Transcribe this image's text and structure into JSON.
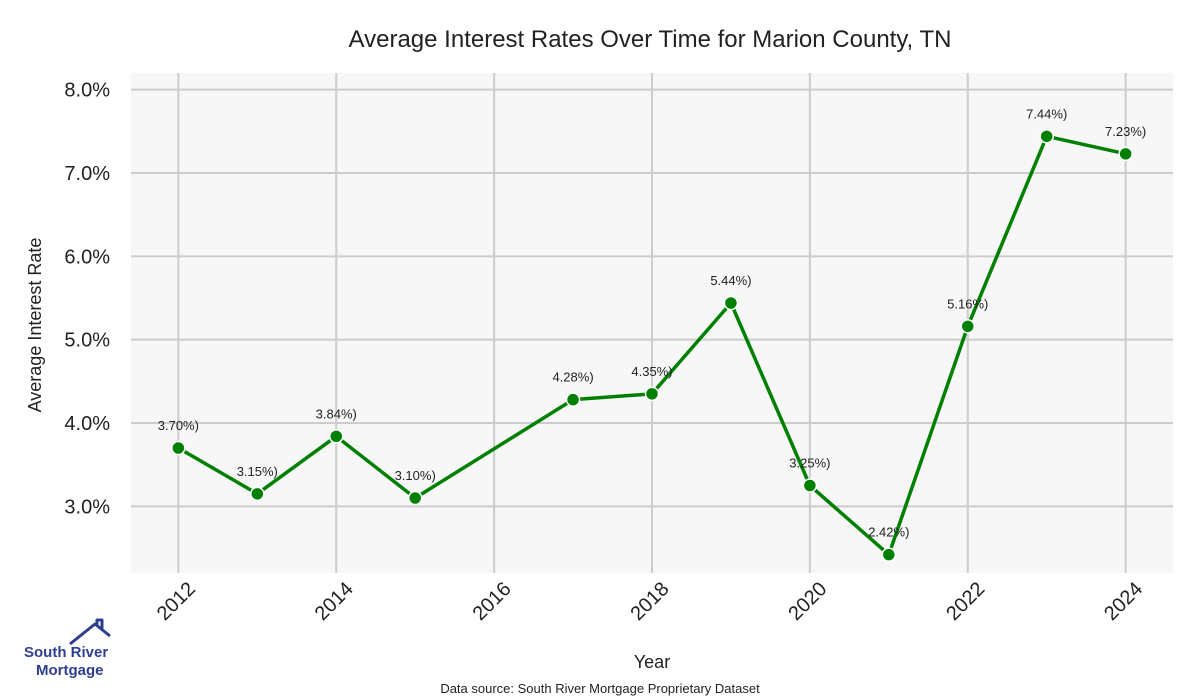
{
  "chart_data": {
    "type": "line",
    "title": "Average Interest Rates Over Time for Marion County, TN",
    "xlabel": "Year",
    "ylabel": "Average Interest Rate",
    "xlim": [
      2011.4,
      2024.6
    ],
    "ylim": [
      2.2,
      8.2
    ],
    "x_ticks": [
      "2012",
      "2014",
      "2016",
      "2018",
      "2020",
      "2022",
      "2024"
    ],
    "x_tick_values": [
      2012,
      2014,
      2016,
      2018,
      2020,
      2022,
      2024
    ],
    "y_ticks": [
      "3.0%",
      "4.0%",
      "5.0%",
      "6.0%",
      "7.0%",
      "8.0%"
    ],
    "y_tick_values": [
      3.0,
      4.0,
      5.0,
      6.0,
      7.0,
      8.0
    ],
    "grid": true,
    "series": [
      {
        "color": "#008000",
        "x": [
          2012,
          2013,
          2014,
          2015,
          2017,
          2018,
          2019,
          2020,
          2021,
          2022,
          2023,
          2024
        ],
        "values": [
          3.7,
          3.15,
          3.84,
          3.1,
          4.28,
          4.35,
          5.44,
          3.25,
          2.42,
          5.16,
          7.44,
          7.23
        ],
        "labels": [
          "3.70%)",
          "3.15%)",
          "3.84%)",
          "3.10%)",
          "4.28%)",
          "4.35%)",
          "5.44%)",
          "3.25%)",
          "2.42%)",
          "5.16%)",
          "7.44%)",
          "7.23%)"
        ]
      }
    ]
  },
  "footer": {
    "source": "Data source: South River Mortgage Proprietary Dataset"
  },
  "logo": {
    "line1": "South River",
    "line2": "Mortgage"
  },
  "colors": {
    "plot_bg": "#f7f7f7",
    "grid": "#cccccc",
    "line": "#008000",
    "logo": "#2e3f8f"
  }
}
